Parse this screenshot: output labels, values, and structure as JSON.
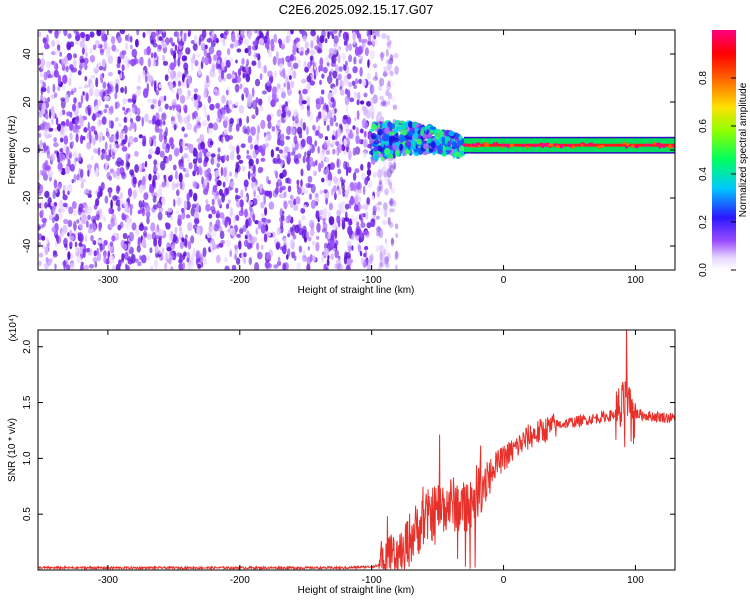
{
  "title": "C2E6.2025.092.15.17.G07",
  "colors": {
    "snr_line": "#e8302a",
    "spectrogram_noise": "#7a1fe0",
    "spectrogram_signal": "#ff2a2a",
    "frame": "#000000",
    "background": "#ffffff"
  },
  "chart_data": [
    {
      "type": "heatmap",
      "title": "",
      "xlabel": "Height of straight line (km)",
      "ylabel": "Frequency (Hz)",
      "xlim": [
        -353,
        130
      ],
      "ylim": [
        -50,
        50
      ],
      "xticks": [
        -300,
        -200,
        -100,
        0,
        100
      ],
      "yticks": [
        -40,
        -20,
        0,
        20,
        40
      ],
      "colorbar": {
        "label": "Normalized spectral amplitude",
        "range": [
          0,
          1
        ],
        "ticks": [
          0.0,
          0.2,
          0.4,
          0.6,
          0.8
        ],
        "colormap": "rainbow (white-purple-blue-cyan-green-yellow-red-magenta)"
      },
      "regions": [
        {
          "name": "noise",
          "x_range": [
            -353,
            -90
          ],
          "freq_range": [
            -50,
            50
          ],
          "amplitude": 0.1
        },
        {
          "name": "signal onset",
          "x_range": [
            -100,
            -30
          ],
          "freq_center": 3,
          "freq_halfwidth": 8,
          "amplitude": 0.45
        },
        {
          "name": "signal",
          "x_range": [
            -30,
            130
          ],
          "freq_center": 2,
          "freq_halfwidth": 2,
          "amplitude": 0.9
        }
      ]
    },
    {
      "type": "line",
      "title": "",
      "xlabel": "Height of straight line (km)",
      "ylabel": "SNR (10 * v/v)",
      "y_multiplier": "(x10⁴)",
      "xlim": [
        -353,
        130
      ],
      "ylim": [
        0,
        2.15
      ],
      "xticks": [
        -300,
        -200,
        -100,
        0,
        100
      ],
      "yticks": [
        0.5,
        1.0,
        1.5,
        2.0
      ],
      "ytick_labels": [
        "0.5",
        "1.0",
        "1.5",
        "2.0"
      ],
      "series": [
        {
          "x": [
            -353,
            -300,
            -200,
            -120,
            -100,
            -90,
            -80,
            -70,
            -60,
            -50,
            -40,
            -30,
            -20,
            -10,
            0,
            10,
            20,
            30,
            40,
            50,
            60,
            70,
            80,
            85,
            90,
            93,
            95,
            97,
            100,
            110,
            120,
            130
          ],
          "values": [
            0.02,
            0.02,
            0.02,
            0.02,
            0.03,
            0.05,
            0.1,
            0.3,
            0.45,
            0.55,
            0.6,
            0.55,
            0.7,
            0.9,
            1.0,
            1.1,
            1.2,
            1.25,
            1.3,
            1.32,
            1.34,
            1.36,
            1.38,
            1.4,
            1.42,
            1.6,
            1.45,
            1.3,
            1.4,
            1.38,
            1.37,
            1.36
          ]
        }
      ]
    }
  ]
}
